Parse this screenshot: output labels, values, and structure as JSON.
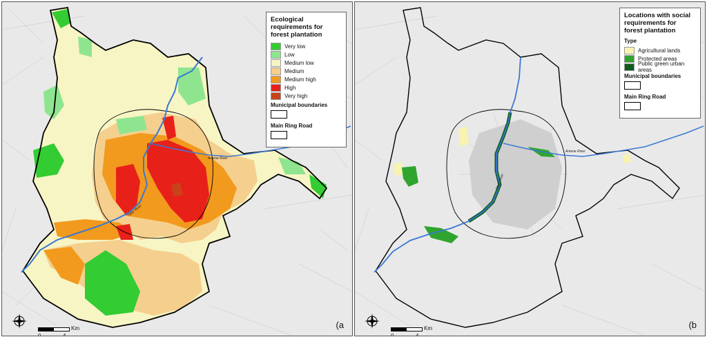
{
  "panel_a": {
    "legend": {
      "title": "Ecological requirements for forest plantation",
      "classes": [
        {
          "label": "Very low",
          "color": "#33cc33"
        },
        {
          "label": "Low",
          "color": "#8fe58f"
        },
        {
          "label": "Medium low",
          "color": "#f7f5c4"
        },
        {
          "label": "Medium",
          "color": "#f5cf8e"
        },
        {
          "label": "Medium high",
          "color": "#f29a1e"
        },
        {
          "label": "High",
          "color": "#e8201a"
        },
        {
          "label": "Very high",
          "color": "#c8431b"
        }
      ],
      "municipal_label": "Municipal boundaries",
      "ring_label": "Main Ring Road"
    },
    "letter": "(a",
    "river_labels": {
      "tiber": "Tiber River",
      "aniene": "Aniene River"
    }
  },
  "panel_b": {
    "legend": {
      "title": "Locations with social requirements for forest plantation",
      "type_label": "Type",
      "classes": [
        {
          "label": "Agricultural lands",
          "color": "#f7f3b0"
        },
        {
          "label": "Protected areas",
          "color": "#2fa52f"
        },
        {
          "label": "Public green urban areas",
          "color": "#0d5c1f"
        }
      ],
      "municipal_label": "Municipal boundaries",
      "ring_label": "Main Ring Road"
    },
    "letter": "(b",
    "river_labels": {
      "tiber": "Tiber River",
      "aniene": "Aniene River"
    }
  },
  "scale": {
    "unit": "Km",
    "zero": "0",
    "four": "4"
  },
  "compass": {
    "n": "N",
    "s": "S",
    "e": "E",
    "w": "W"
  },
  "colors": {
    "river": "#3a78d4",
    "boundary": "#000000",
    "background": "#e9e9e9"
  }
}
